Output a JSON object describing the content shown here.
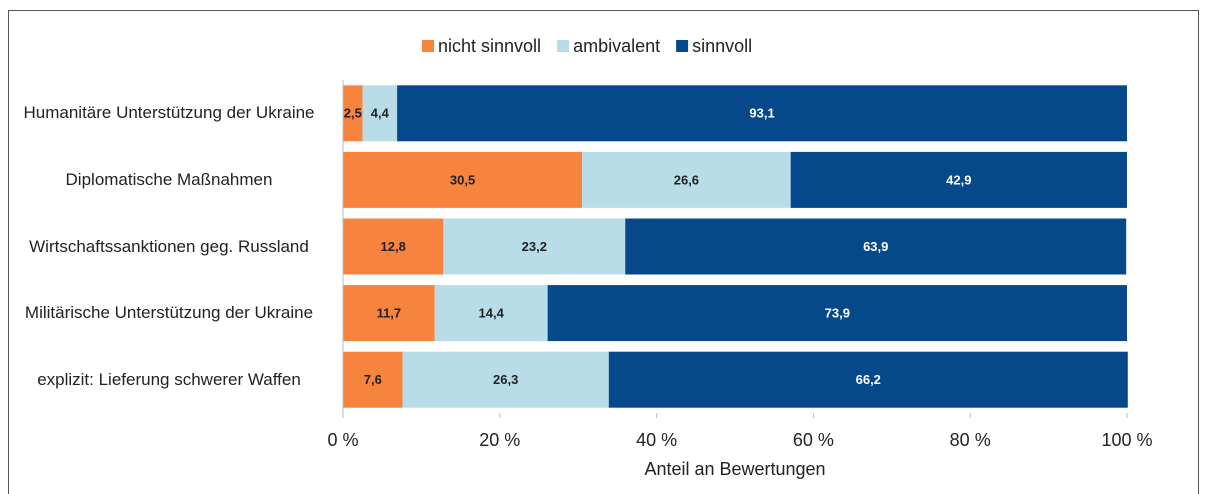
{
  "chart_data": {
    "type": "stacked_barh",
    "categories": [
      "Humanitäre Unterstützung der Ukraine",
      "Diplomatische Maßnahmen",
      "Wirtschaftssanktionen geg. Russland",
      "Militärische Unterstützung der Ukraine",
      "explizit: Lieferung schwerer Waffen"
    ],
    "series": [
      {
        "name": "nicht sinnvoll",
        "color": "#f7843e",
        "values": [
          2.5,
          30.5,
          12.8,
          11.7,
          7.6
        ],
        "value_labels": [
          "2,5",
          "30,5",
          "12,8",
          "11,7",
          "7,6"
        ]
      },
      {
        "name": "ambivalent",
        "color": "#b8dde8",
        "values": [
          4.4,
          26.6,
          23.2,
          14.4,
          26.3
        ],
        "value_labels": [
          "4,4",
          "26,6",
          "23,2",
          "14,4",
          "26,3"
        ]
      },
      {
        "name": "sinnvoll",
        "color": "#05498a",
        "values": [
          93.1,
          42.9,
          63.9,
          73.9,
          66.2
        ],
        "value_labels": [
          "93,1",
          "42,9",
          "63,9",
          "73,9",
          "66,2"
        ]
      }
    ],
    "xlabel": "Anteil an Bewertungen",
    "xlim": [
      0,
      100
    ],
    "xticks": [
      {
        "value": 0,
        "label": "0 %"
      },
      {
        "value": 20,
        "label": "20 %"
      },
      {
        "value": 40,
        "label": "40 %"
      },
      {
        "value": 60,
        "label": "60 %"
      },
      {
        "value": 80,
        "label": "80 %"
      },
      {
        "value": 100,
        "label": "100 %"
      }
    ],
    "legend": "top"
  }
}
